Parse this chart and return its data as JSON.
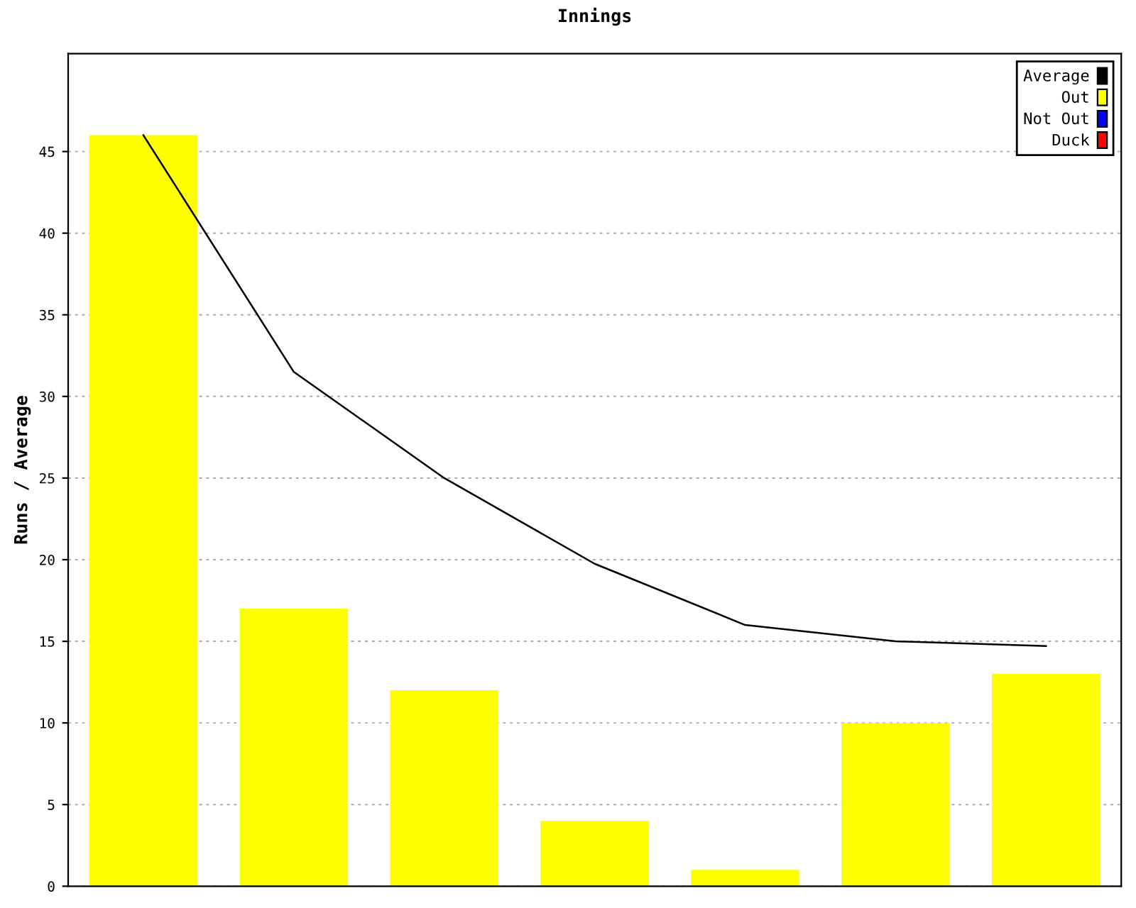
{
  "chart_data": {
    "type": "bar",
    "title": "Innings",
    "ylabel": "Runs / Average",
    "categories": [
      null,
      null,
      null,
      null,
      null,
      null,
      null
    ],
    "series": [
      {
        "name": "Average",
        "type": "line",
        "color": "#000000",
        "values": [
          46,
          31.5,
          25,
          19.75,
          16,
          15,
          14.71
        ]
      },
      {
        "name": "Out",
        "color": "#ffff00",
        "values": [
          46,
          17,
          12,
          4,
          1,
          10,
          13
        ]
      },
      {
        "name": "Not Out",
        "color": "#0000ff",
        "values": [
          null,
          null,
          null,
          null,
          null,
          null,
          null
        ]
      },
      {
        "name": "Duck",
        "color": "#ff0000",
        "values": [
          null,
          null,
          null,
          null,
          null,
          null,
          null
        ]
      }
    ],
    "ylim": [
      0,
      51
    ],
    "yticks": [
      0,
      5,
      10,
      15,
      20,
      25,
      30,
      35,
      40,
      45
    ],
    "grid": "y",
    "legend": "top right",
    "tick_labels": "y"
  }
}
